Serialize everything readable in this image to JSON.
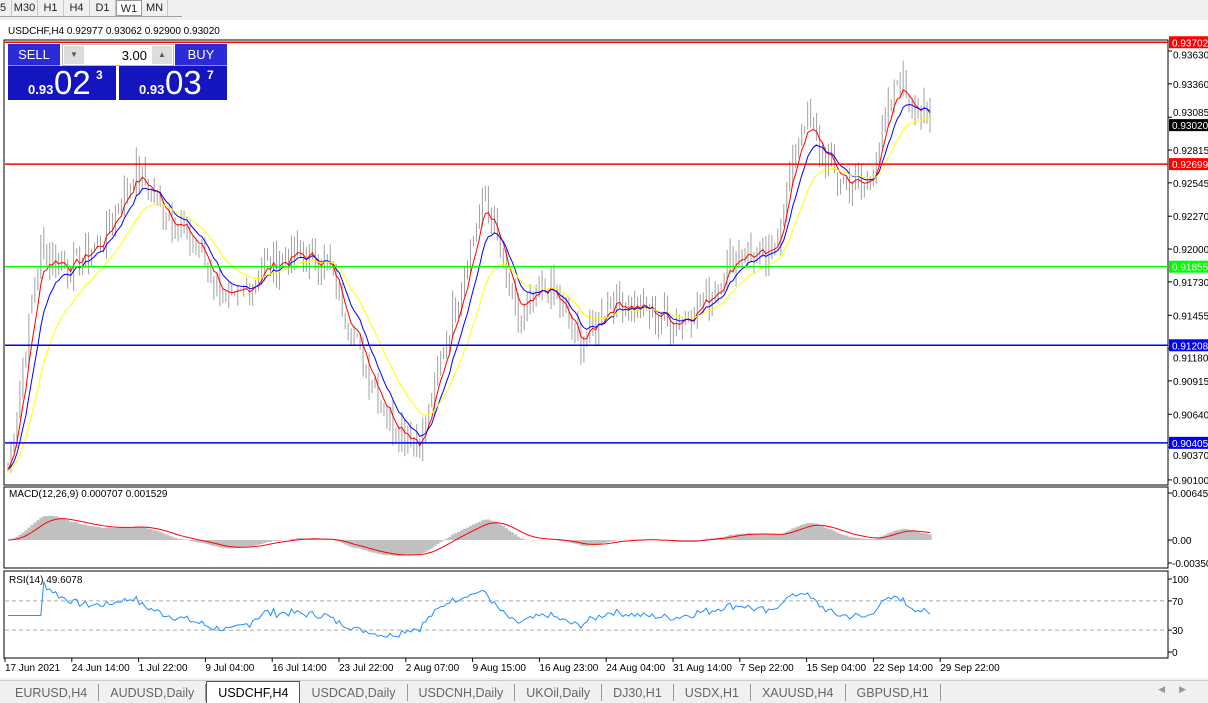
{
  "timeframes": [
    "5",
    "M30",
    "H1",
    "H4",
    "D1",
    "W1",
    "MN"
  ],
  "active_timeframe": "W1",
  "chart_title": "USDCHF,H4  0.92977 0.93062 0.92900 0.93020",
  "trade_panel": {
    "sell_label": "SELL",
    "buy_label": "BUY",
    "lot": "3.00",
    "sell_prefix": "0.93",
    "sell_big": "02",
    "sell_sup": "3",
    "buy_prefix": "0.93",
    "buy_big": "03",
    "buy_sup": "7"
  },
  "price_axis": {
    "ticks": [
      "0.93630",
      "0.93360",
      "0.93085",
      "0.92815",
      "0.92545",
      "0.92270",
      "0.92000",
      "0.91730",
      "0.91455",
      "0.91180",
      "0.90915",
      "0.90640",
      "0.90370",
      "0.90100"
    ],
    "current": "0.93020"
  },
  "levels": [
    {
      "price": 0.93702,
      "label": "0.93702",
      "color": "#ff0000"
    },
    {
      "price": 0.92699,
      "label": "0.92699",
      "color": "#ff0000"
    },
    {
      "price": 0.91855,
      "label": "0.91855",
      "color": "#00ff00"
    },
    {
      "price": 0.91208,
      "label": "0.91208",
      "color": "#0000ff"
    },
    {
      "price": 0.90405,
      "label": "0.90405",
      "color": "#0000ff"
    }
  ],
  "macd": {
    "label": "MACD(12,26,9) 0.000707 0.001529",
    "ticks": [
      "0.006451",
      "0.00",
      "-0.00350"
    ]
  },
  "rsi": {
    "label": "RSI(14) 49.6078",
    "ticks": [
      "100",
      "70",
      "30",
      "0"
    ]
  },
  "date_axis": [
    "17 Jun 2021",
    "24 Jun 14:00",
    "1 Jul 22:00",
    "9 Jul 04:00",
    "16 Jul 14:00",
    "23 Jul 22:00",
    "2 Aug 07:00",
    "9 Aug 15:00",
    "16 Aug 23:00",
    "24 Aug 04:00",
    "31 Aug 14:00",
    "7 Sep 22:00",
    "15 Sep 04:00",
    "22 Sep 14:00",
    "29 Sep 22:00"
  ],
  "chart_data": {
    "type": "candlestick",
    "symbol": "USDCHF",
    "timeframe": "H4",
    "ylim": [
      0.901,
      0.937
    ],
    "close_samples": [
      0.9018,
      0.92,
      0.9185,
      0.921,
      0.9265,
      0.923,
      0.92,
      0.915,
      0.9185,
      0.9195,
      0.919,
      0.912,
      0.906,
      0.904,
      0.915,
      0.9245,
      0.914,
      0.917,
      0.912,
      0.916,
      0.915,
      0.914,
      0.916,
      0.92,
      0.919,
      0.931,
      0.926,
      0.925,
      0.934,
      0.9302
    ],
    "ma_colors": [
      "#ff0000",
      "#0000ff",
      "#ffff00"
    ],
    "bar_color": "#a0a0a0",
    "macd_hist_color": "#c0c0c0",
    "macd_signal_color": "#ff0000",
    "rsi_color": "#1e90ff"
  },
  "tabs": [
    "EURUSD,H4",
    "AUDUSD,Daily",
    "USDCHF,H4",
    "USDCAD,Daily",
    "USDCNH,Daily",
    "UKOil,Daily",
    "DJ30,H1",
    "USDX,H1",
    "XAUUSD,H4",
    "GBPUSD,H1"
  ],
  "active_tab": "USDCHF,H4"
}
